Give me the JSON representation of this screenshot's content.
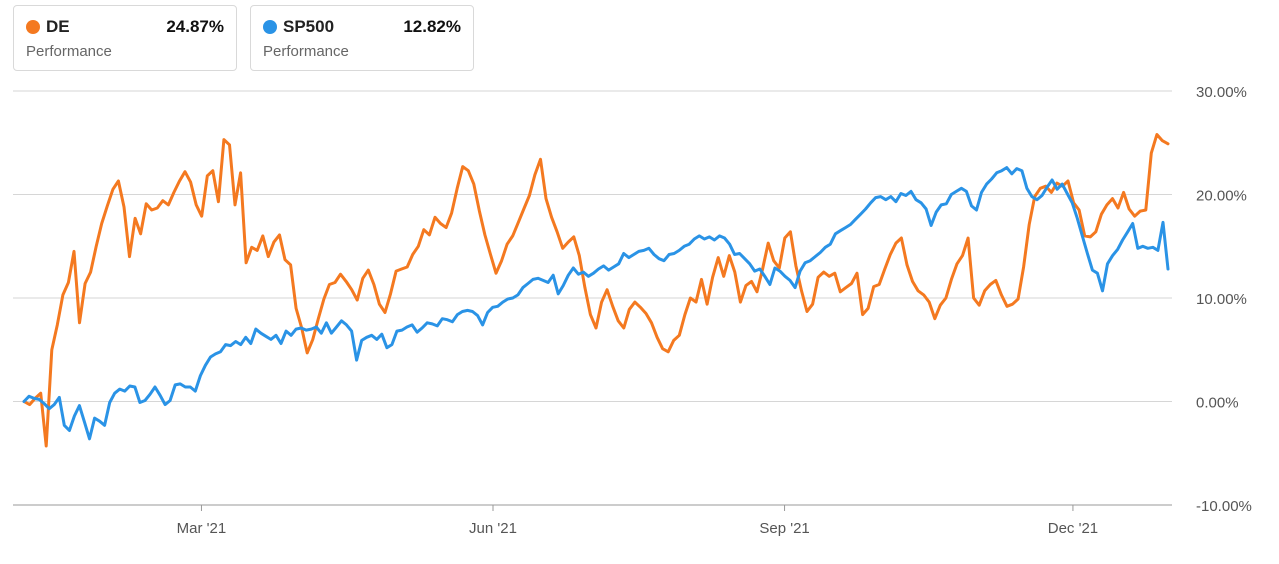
{
  "legend": [
    {
      "name": "DE",
      "value": "24.87%",
      "sub": "Performance",
      "color": "#f47920"
    },
    {
      "name": "SP500",
      "value": "12.82%",
      "sub": "Performance",
      "color": "#2a93e6"
    }
  ],
  "chart_data": {
    "type": "line",
    "x_range": [
      "2021-01-04",
      "2021-12-31"
    ],
    "ylim": [
      -10,
      30
    ],
    "y_ticks": [
      "30.00%",
      "20.00%",
      "10.00%",
      "0.00%",
      "-10.00%"
    ],
    "x_ticks": [
      "Mar '21",
      "Jun '21",
      "Sep '21",
      "Dec '21"
    ],
    "grid": true,
    "legend_position": "top-left",
    "series": [
      {
        "name": "DE",
        "color": "#f47920",
        "values": [
          0.0,
          -0.3,
          0.3,
          0.8,
          -4.3,
          5.0,
          7.4,
          10.3,
          11.5,
          14.5,
          7.6,
          11.4,
          12.5,
          15.0,
          17.2,
          18.9,
          20.5,
          21.3,
          18.8,
          14.0,
          17.7,
          16.2,
          19.1,
          18.5,
          18.7,
          19.4,
          19.0,
          20.2,
          21.3,
          22.2,
          21.2,
          19.0,
          17.9,
          21.8,
          22.3,
          19.3,
          25.3,
          24.8,
          19.0,
          22.1,
          13.4,
          14.9,
          14.6,
          16.0,
          14.0,
          15.4,
          16.1,
          13.7,
          13.2,
          9.0,
          7.1,
          4.7,
          6.0,
          8.0,
          9.9,
          11.3,
          11.5,
          12.3,
          11.6,
          10.8,
          9.8,
          11.9,
          12.7,
          11.3,
          9.4,
          8.6,
          10.4,
          12.6,
          12.8,
          13.0,
          14.2,
          15.0,
          16.6,
          16.1,
          17.8,
          17.2,
          16.8,
          18.2,
          20.6,
          22.7,
          22.3,
          21.0,
          18.4,
          16.1,
          14.2,
          12.4,
          13.6,
          15.2,
          16.0,
          17.3,
          18.6,
          19.9,
          21.9,
          23.4,
          19.6,
          17.8,
          16.4,
          14.8,
          15.4,
          15.9,
          14.1,
          11.0,
          8.4,
          7.1,
          9.6,
          10.8,
          9.2,
          7.8,
          7.1,
          8.9,
          9.6,
          9.1,
          8.5,
          7.6,
          6.2,
          5.1,
          4.8,
          5.9,
          6.4,
          8.4,
          10.0,
          9.6,
          11.8,
          9.4,
          12.0,
          13.9,
          12.1,
          14.1,
          12.5,
          9.6,
          11.2,
          11.6,
          10.6,
          12.8,
          15.3,
          13.6,
          12.9,
          15.8,
          16.4,
          13.1,
          10.7,
          8.7,
          9.4,
          12.0,
          12.5,
          12.1,
          12.4,
          10.6,
          11.0,
          11.4,
          12.4,
          8.4,
          9.0,
          11.1,
          11.3,
          12.8,
          14.2,
          15.3,
          15.8,
          13.2,
          11.6,
          10.7,
          10.3,
          9.6,
          8.0,
          9.3,
          10.0,
          11.8,
          13.3,
          14.1,
          15.8,
          10.0,
          9.3,
          10.7,
          11.3,
          11.7,
          10.3,
          9.2,
          9.4,
          9.9,
          13.0,
          17.1,
          19.8,
          20.6,
          20.8,
          20.2,
          21.1,
          20.8,
          21.3,
          19.2,
          18.5,
          16.0,
          15.9,
          16.4,
          18.1,
          19.0,
          19.6,
          18.7,
          20.2,
          18.6,
          17.9,
          18.4,
          18.5,
          24.0,
          25.8,
          25.2,
          24.9
        ]
      },
      {
        "name": "SP500",
        "color": "#2a93e6",
        "values": [
          0.0,
          0.5,
          0.3,
          0.2,
          -0.2,
          -0.7,
          -0.3,
          0.4,
          -2.3,
          -2.8,
          -1.4,
          -0.4,
          -2.0,
          -3.6,
          -1.6,
          -1.9,
          -2.3,
          -0.1,
          0.8,
          1.2,
          1.0,
          1.5,
          1.4,
          -0.1,
          0.1,
          0.7,
          1.4,
          0.6,
          -0.3,
          0.1,
          1.6,
          1.7,
          1.4,
          1.4,
          1.0,
          2.5,
          3.5,
          4.3,
          4.6,
          4.8,
          5.5,
          5.4,
          5.8,
          5.5,
          6.2,
          5.6,
          7.0,
          6.6,
          6.3,
          6.0,
          6.4,
          5.6,
          6.8,
          6.4,
          7.0,
          7.1,
          6.9,
          7.0,
          7.2,
          6.6,
          7.6,
          6.6,
          7.2,
          7.8,
          7.4,
          6.8,
          4.0,
          5.9,
          6.2,
          6.4,
          6.0,
          6.5,
          5.2,
          5.5,
          6.8,
          6.9,
          7.2,
          7.4,
          6.7,
          7.1,
          7.6,
          7.5,
          7.3,
          8.0,
          7.9,
          7.7,
          8.4,
          8.7,
          8.8,
          8.7,
          8.3,
          7.4,
          8.6,
          9.1,
          9.2,
          9.6,
          9.9,
          10.0,
          10.3,
          11.0,
          11.4,
          11.8,
          11.9,
          11.7,
          11.5,
          12.2,
          10.4,
          11.2,
          12.2,
          12.9,
          12.3,
          12.5,
          12.1,
          12.4,
          12.8,
          13.1,
          12.7,
          13.0,
          13.3,
          14.3,
          13.9,
          14.2,
          14.5,
          14.6,
          14.8,
          14.2,
          13.8,
          13.6,
          14.2,
          14.3,
          14.6,
          15.0,
          15.2,
          15.7,
          16.0,
          15.7,
          15.9,
          15.6,
          16.0,
          15.8,
          15.2,
          14.2,
          14.3,
          13.8,
          13.3,
          12.6,
          12.8,
          12.1,
          11.3,
          12.9,
          12.6,
          12.1,
          11.7,
          11.0,
          12.6,
          13.4,
          13.6,
          14.0,
          14.4,
          14.9,
          15.2,
          16.2,
          16.5,
          16.8,
          17.1,
          17.6,
          18.1,
          18.6,
          19.2,
          19.7,
          19.8,
          19.5,
          19.8,
          19.3,
          20.1,
          19.9,
          20.3,
          19.5,
          19.2,
          18.6,
          17.0,
          18.3,
          19.0,
          19.1,
          20.0,
          20.3,
          20.6,
          20.3,
          18.9,
          18.5,
          20.2,
          21.0,
          21.5,
          22.1,
          22.3,
          22.6,
          22.0,
          22.5,
          22.3,
          20.6,
          19.8,
          19.5,
          19.9,
          20.7,
          21.4,
          20.5,
          21.0,
          20.1,
          19.2,
          17.7,
          16.0,
          14.3,
          12.7,
          12.4,
          10.7,
          13.3,
          14.1,
          14.7,
          15.6,
          16.4,
          17.2,
          14.8,
          15.0,
          14.8,
          14.9,
          14.6,
          17.3,
          12.8
        ]
      }
    ]
  }
}
